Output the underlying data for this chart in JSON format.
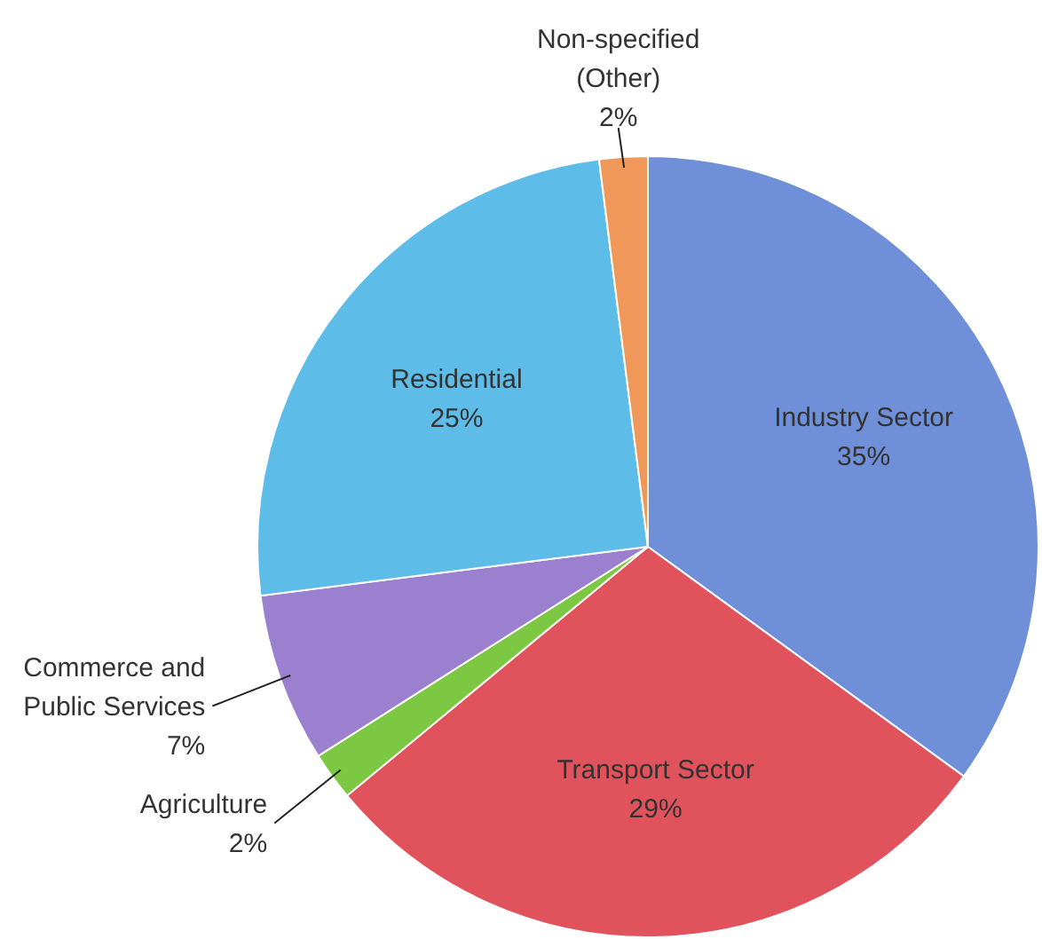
{
  "chart_data": {
    "type": "pie",
    "categories": [
      "Industry Sector",
      "Transport Sector",
      "Agriculture",
      "Commerce and Public Services",
      "Residential",
      "Non-specified (Other)"
    ],
    "values": [
      35,
      29,
      2,
      7,
      25,
      2
    ],
    "value_labels": [
      "35%",
      "29%",
      "2%",
      "7%",
      "25%",
      "2%"
    ],
    "colors": [
      "#6f8fd8",
      "#e0525c",
      "#7cc843",
      "#9a80cf",
      "#5dbde8",
      "#f0985a"
    ]
  }
}
